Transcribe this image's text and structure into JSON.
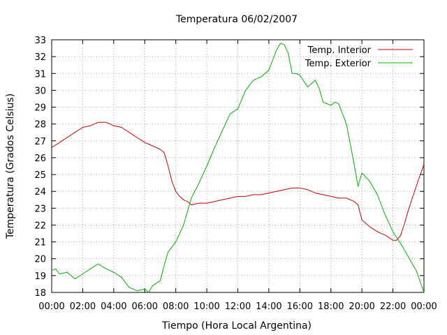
{
  "chart_data": {
    "type": "line",
    "title": "Temperatura 06/02/2007",
    "xlabel": "Tiempo (Hora Local Argentina)",
    "ylabel": "Temperatura (Grados Celsius)",
    "xlim": [
      0,
      24
    ],
    "ylim": [
      18,
      33
    ],
    "grid": true,
    "legend_position": "top-right",
    "x_ticks": [
      0,
      2,
      4,
      6,
      8,
      10,
      12,
      14,
      16,
      18,
      20,
      22,
      24
    ],
    "x_tick_labels": [
      "00:00",
      "02:00",
      "04:00",
      "06:00",
      "08:00",
      "10:00",
      "12:00",
      "14:00",
      "16:00",
      "18:00",
      "20:00",
      "22:00",
      "00:00"
    ],
    "y_ticks": [
      18,
      19,
      20,
      21,
      22,
      23,
      24,
      25,
      26,
      27,
      28,
      29,
      30,
      31,
      32,
      33
    ],
    "y_tick_labels": [
      "18",
      "19",
      "20",
      "21",
      "22",
      "23",
      "24",
      "25",
      "26",
      "27",
      "28",
      "29",
      "30",
      "31",
      "32",
      "33"
    ],
    "series": [
      {
        "name": "Temp. Interior",
        "color": "#cc0000",
        "x": [
          0,
          0.5,
          1,
          1.5,
          2,
          2.5,
          3,
          3.5,
          4,
          4.5,
          5,
          5.5,
          6,
          6.5,
          7,
          7.25,
          7.5,
          7.75,
          8,
          8.25,
          8.5,
          8.75,
          9,
          9.5,
          10,
          10.5,
          11,
          11.5,
          12,
          12.5,
          13,
          13.5,
          14,
          14.5,
          15,
          15.5,
          16,
          16.5,
          17,
          17.5,
          18,
          18.5,
          19,
          19.5,
          19.75,
          20,
          20.5,
          21,
          21.5,
          22,
          22.25,
          22.5,
          22.75,
          23,
          23.5,
          24
        ],
        "y": [
          26.6,
          26.9,
          27.2,
          27.5,
          27.8,
          27.9,
          28.1,
          28.1,
          27.9,
          27.8,
          27.5,
          27.2,
          26.9,
          26.7,
          26.5,
          26.3,
          25.5,
          24.6,
          24.0,
          23.7,
          23.5,
          23.4,
          23.2,
          23.3,
          23.3,
          23.4,
          23.5,
          23.6,
          23.7,
          23.7,
          23.8,
          23.8,
          23.9,
          24.0,
          24.1,
          24.2,
          24.2,
          24.1,
          23.9,
          23.8,
          23.7,
          23.6,
          23.6,
          23.4,
          23.2,
          22.3,
          21.9,
          21.6,
          21.4,
          21.1,
          21.1,
          21.4,
          22.1,
          22.9,
          24.3,
          25.6
        ]
      },
      {
        "name": "Temp. Exterior",
        "color": "#00b000",
        "x": [
          0,
          0.25,
          0.5,
          1,
          1.5,
          2,
          2.5,
          3,
          3.5,
          4,
          4.5,
          5,
          5.5,
          6,
          6.25,
          6.5,
          7,
          7.25,
          7.5,
          8,
          8.5,
          9,
          9.5,
          10,
          10.5,
          11,
          11.5,
          12,
          12.5,
          13,
          13.5,
          14,
          14.25,
          14.5,
          14.75,
          15,
          15.25,
          15.5,
          15.75,
          16,
          16.5,
          17,
          17.25,
          17.5,
          18,
          18.25,
          18.5,
          19,
          19.5,
          19.75,
          20,
          20.5,
          21,
          21.5,
          22,
          22.5,
          23,
          23.5,
          24
        ],
        "y": [
          19.3,
          19.4,
          19.1,
          19.2,
          18.8,
          19.1,
          19.4,
          19.7,
          19.4,
          19.2,
          18.9,
          18.3,
          18.1,
          18.2,
          18.0,
          18.4,
          18.7,
          19.6,
          20.4,
          21.0,
          22.0,
          23.6,
          24.5,
          25.5,
          26.6,
          27.6,
          28.6,
          28.9,
          30.0,
          30.6,
          30.8,
          31.2,
          31.8,
          32.4,
          32.8,
          32.7,
          32.2,
          31.0,
          31.0,
          30.9,
          30.2,
          30.6,
          30.1,
          29.3,
          29.1,
          29.3,
          29.2,
          28.0,
          25.6,
          24.3,
          25.1,
          24.6,
          23.8,
          22.6,
          21.6,
          20.9,
          20.1,
          19.3,
          18.0
        ]
      }
    ]
  }
}
